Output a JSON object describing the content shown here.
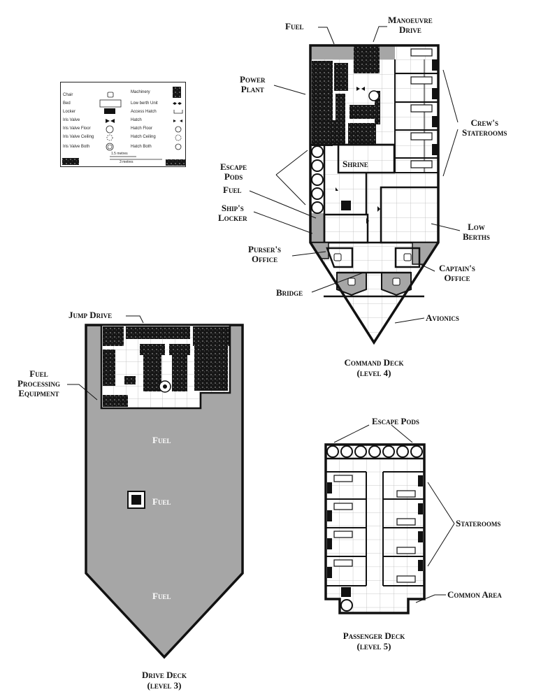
{
  "labels": {
    "fuel_top": "Fuel",
    "manoeuvre_drive": [
      "Manoeuvre",
      "Drive"
    ],
    "power_plant": [
      "Power",
      "Plant"
    ],
    "crews_staterooms": [
      "Crew's",
      "Staterooms"
    ],
    "escape_pods": [
      "Escape",
      "Pods"
    ],
    "shrine": "Shrine",
    "fuel_mid": "Fuel",
    "ships_locker": [
      "Ship's",
      "Locker"
    ],
    "low_berths": [
      "Low",
      "Berths"
    ],
    "pursers_office": [
      "Purser's",
      "Office"
    ],
    "captains_office": [
      "Captain's",
      "Office"
    ],
    "bridge": "Bridge",
    "avionics": "Avionics",
    "jump_drive": "Jump Drive",
    "fuel_processing": [
      "Fuel",
      "Processing",
      "Equipment"
    ],
    "drive_fuel_1": "Fuel",
    "drive_fuel_2": "Fuel",
    "drive_fuel_3": "Fuel",
    "escape_pods_passenger": "Escape Pods",
    "staterooms": "Staterooms",
    "common_area": "Common Area"
  },
  "captions": {
    "command": [
      "Command Deck",
      "(level 4)"
    ],
    "drive": [
      "Drive Deck",
      "(level 3)"
    ],
    "passenger": [
      "Passenger Deck",
      "(level 5)"
    ]
  },
  "legend": {
    "left": [
      "Chair",
      "Bed",
      "Locker",
      "Iris Valve",
      "Iris Valve Floor",
      "Iris Valve Ceiling",
      "Iris Valve Both"
    ],
    "right": [
      "Machinery",
      "Low berth Unit",
      "Access Hatch",
      "Hatch",
      "Hatch Floor",
      "Hatch Ceiling",
      "Hatch Both"
    ],
    "scale_small": "1.5 metres",
    "scale_large": "3 metres"
  },
  "colors": {
    "fuel_grey": "#a6a6a6",
    "wall": "#111111",
    "machinery": "#161616",
    "floor": "#ffffff",
    "grid": "#b9b9b9"
  },
  "icons": [
    "chair-icon",
    "bed-icon",
    "locker-icon",
    "iris-valve-icon",
    "hatch-icon",
    "machinery-icon",
    "escape-pod-icon"
  ]
}
